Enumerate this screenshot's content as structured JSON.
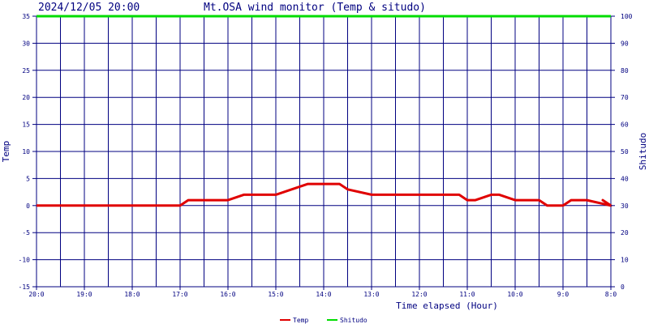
{
  "header": {
    "datetime": "2024/12/05 20:00",
    "title": "Mt.OSA wind monitor (Temp & situdo)"
  },
  "chart_data": {
    "type": "line",
    "xlabel": "Time elapsed (Hour)",
    "ylabel_left": "Temp",
    "ylabel_right": "Shitudo",
    "ylim_left": [
      -15,
      35
    ],
    "ylim_right": [
      0,
      100
    ],
    "y_ticks_left": [
      "-15",
      "-10",
      "-5",
      "0",
      "5",
      "10",
      "15",
      "20",
      "25",
      "30",
      "35"
    ],
    "y_ticks_right": [
      "0",
      "10",
      "20",
      "30",
      "40",
      "50",
      "60",
      "70",
      "80",
      "90",
      "100"
    ],
    "x_tick_labels": [
      "20:0",
      "19:0",
      "18:0",
      "17:0",
      "16:0",
      "15:0",
      "14:0",
      "13:0",
      "12:0",
      "11:0",
      "10:0",
      "9:0",
      "8:0"
    ],
    "grid": true,
    "legend_position": "bottom",
    "series": [
      {
        "name": "Temp",
        "axis": "left",
        "color": "#e00000",
        "hours_elapsed": [
          0,
          0.5,
          1,
          1.5,
          2,
          2.5,
          3,
          3.17,
          3.33,
          4,
          4.33,
          4.5,
          5,
          5.33,
          5.67,
          6,
          6.33,
          6.5,
          7,
          7.5,
          8,
          8.33,
          8.5,
          8.83,
          9,
          9.17,
          9.5,
          9.67,
          10,
          10.17,
          10.5,
          10.67,
          11,
          11.17,
          11.5,
          12,
          11.83,
          12
        ],
        "values": [
          0,
          0,
          0,
          0,
          0,
          0,
          0,
          1,
          1,
          1,
          2,
          2,
          2,
          3,
          4,
          4,
          4,
          3,
          2,
          2,
          2,
          2,
          2,
          2,
          1,
          1,
          2,
          2,
          1,
          1,
          1,
          0,
          0,
          1,
          1,
          0,
          1,
          0
        ]
      },
      {
        "name": "Shitudo",
        "axis": "right",
        "color": "#00dd00",
        "hours_elapsed": [
          0,
          12
        ],
        "values": [
          100,
          100
        ]
      }
    ]
  }
}
